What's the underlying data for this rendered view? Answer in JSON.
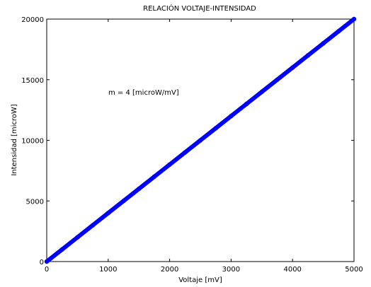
{
  "chart_data": {
    "type": "line",
    "title": "RELACIÓN VOLTAJE-INTENSIDAD",
    "xlabel": "Voltaje [mV]",
    "ylabel": "Intensidad [microW]",
    "xlim": [
      0,
      5000
    ],
    "ylim": [
      0,
      20000
    ],
    "xticks": [
      0,
      1000,
      2000,
      3000,
      4000,
      5000
    ],
    "yticks": [
      0,
      5000,
      10000,
      15000,
      20000
    ],
    "xtick_labels": [
      "0",
      "1000",
      "2000",
      "3000",
      "4000",
      "5000"
    ],
    "ytick_labels": [
      "0",
      "5000",
      "10000",
      "15000",
      "20000"
    ],
    "grid": false,
    "series": [
      {
        "color": "#0000ff",
        "marker": "point",
        "x": [
          0,
          250,
          500,
          750,
          1000,
          1250,
          1500,
          1750,
          2000,
          2250,
          2500,
          2750,
          3000,
          3250,
          3500,
          3750,
          4000,
          4250,
          4500,
          4750,
          5000
        ],
        "y": [
          0,
          1000,
          2000,
          3000,
          4000,
          5000,
          6000,
          7000,
          8000,
          9000,
          10000,
          11000,
          12000,
          13000,
          14000,
          15000,
          16000,
          17000,
          18000,
          19000,
          20000
        ]
      }
    ],
    "annotations": [
      {
        "text": "m = 4 [microW/mV]",
        "x": 1000,
        "y": 14000
      }
    ]
  }
}
